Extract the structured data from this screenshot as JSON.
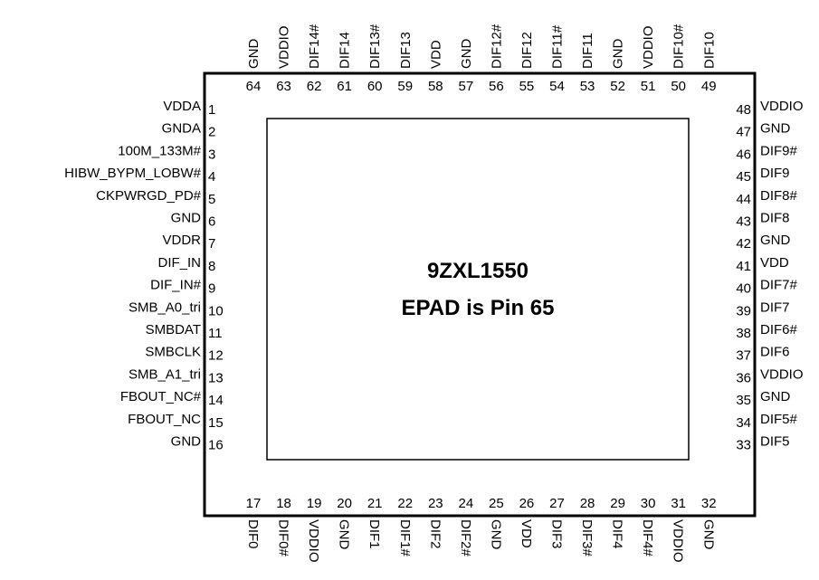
{
  "chip": {
    "title": "9ZXL1550",
    "subtitle": "EPAD is Pin 65"
  },
  "top_pins": [
    {
      "num": "64",
      "name": "GND"
    },
    {
      "num": "63",
      "name": "VDDIO"
    },
    {
      "num": "62",
      "name": "DIF14#"
    },
    {
      "num": "61",
      "name": "DIF14"
    },
    {
      "num": "60",
      "name": "DIF13#"
    },
    {
      "num": "59",
      "name": "DIF13"
    },
    {
      "num": "58",
      "name": "VDD"
    },
    {
      "num": "57",
      "name": "GND"
    },
    {
      "num": "56",
      "name": "DIF12#"
    },
    {
      "num": "55",
      "name": "DIF12"
    },
    {
      "num": "54",
      "name": "DIF11#"
    },
    {
      "num": "53",
      "name": "DIF11"
    },
    {
      "num": "52",
      "name": "GND"
    },
    {
      "num": "51",
      "name": "VDDIO"
    },
    {
      "num": "50",
      "name": "DIF10#"
    },
    {
      "num": "49",
      "name": "DIF10"
    }
  ],
  "left_pins": [
    {
      "num": "1",
      "name": "VDDA"
    },
    {
      "num": "2",
      "name": "GNDA"
    },
    {
      "num": "3",
      "name": "100M_133M#"
    },
    {
      "num": "4",
      "name": "HIBW_BYPM_LOBW#"
    },
    {
      "num": "5",
      "name": "CKPWRGD_PD#"
    },
    {
      "num": "6",
      "name": "GND"
    },
    {
      "num": "7",
      "name": "VDDR"
    },
    {
      "num": "8",
      "name": "DIF_IN"
    },
    {
      "num": "9",
      "name": "DIF_IN#"
    },
    {
      "num": "10",
      "name": "SMB_A0_tri"
    },
    {
      "num": "11",
      "name": "SMBDAT"
    },
    {
      "num": "12",
      "name": "SMBCLK"
    },
    {
      "num": "13",
      "name": "SMB_A1_tri"
    },
    {
      "num": "14",
      "name": "FBOUT_NC#"
    },
    {
      "num": "15",
      "name": "FBOUT_NC"
    },
    {
      "num": "16",
      "name": "GND"
    }
  ],
  "right_pins": [
    {
      "num": "48",
      "name": "VDDIO"
    },
    {
      "num": "47",
      "name": "GND"
    },
    {
      "num": "46",
      "name": "DIF9#"
    },
    {
      "num": "45",
      "name": "DIF9"
    },
    {
      "num": "44",
      "name": "DIF8#"
    },
    {
      "num": "43",
      "name": "DIF8"
    },
    {
      "num": "42",
      "name": "GND"
    },
    {
      "num": "41",
      "name": "VDD"
    },
    {
      "num": "40",
      "name": "DIF7#"
    },
    {
      "num": "39",
      "name": "DIF7"
    },
    {
      "num": "38",
      "name": "DIF6#"
    },
    {
      "num": "37",
      "name": "DIF6"
    },
    {
      "num": "36",
      "name": "VDDIO"
    },
    {
      "num": "35",
      "name": "GND"
    },
    {
      "num": "34",
      "name": "DIF5#"
    },
    {
      "num": "33",
      "name": "DIF5"
    }
  ],
  "bottom_pins": [
    {
      "num": "17",
      "name": "DIF0"
    },
    {
      "num": "18",
      "name": "DIF0#"
    },
    {
      "num": "19",
      "name": "VDDIO"
    },
    {
      "num": "20",
      "name": "GND"
    },
    {
      "num": "21",
      "name": "DIF1"
    },
    {
      "num": "22",
      "name": "DIF1#"
    },
    {
      "num": "23",
      "name": "DIF2"
    },
    {
      "num": "24",
      "name": "DIF2#"
    },
    {
      "num": "25",
      "name": "GND"
    },
    {
      "num": "26",
      "name": "VDD"
    },
    {
      "num": "27",
      "name": "DIF3"
    },
    {
      "num": "28",
      "name": "DIF3#"
    },
    {
      "num": "29",
      "name": "DIF4"
    },
    {
      "num": "30",
      "name": "DIF4#"
    },
    {
      "num": "31",
      "name": "VDDIO"
    },
    {
      "num": "32",
      "name": "GND"
    }
  ]
}
